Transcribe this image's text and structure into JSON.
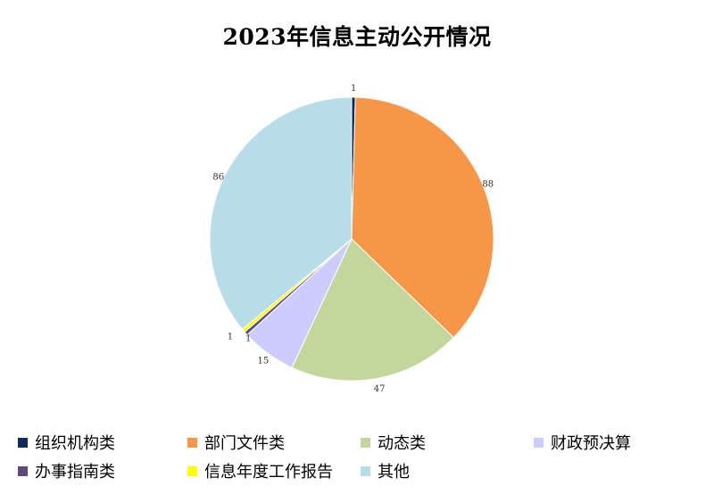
{
  "chart_data": {
    "type": "pie",
    "title": "2023年信息主动公开情况",
    "categories": [
      "组织机构类",
      "部门文件类",
      "动态类",
      "财政预决算",
      "办事指南类",
      "信息年度工作报告",
      "其他"
    ],
    "values": [
      1,
      88,
      47,
      15,
      1,
      1,
      86
    ],
    "colors": [
      "#0f2a5c",
      "#f79646",
      "#c3d69b",
      "#ccccff",
      "#604a7b",
      "#ffff00",
      "#b7dde8"
    ],
    "legend_position": "bottom"
  }
}
